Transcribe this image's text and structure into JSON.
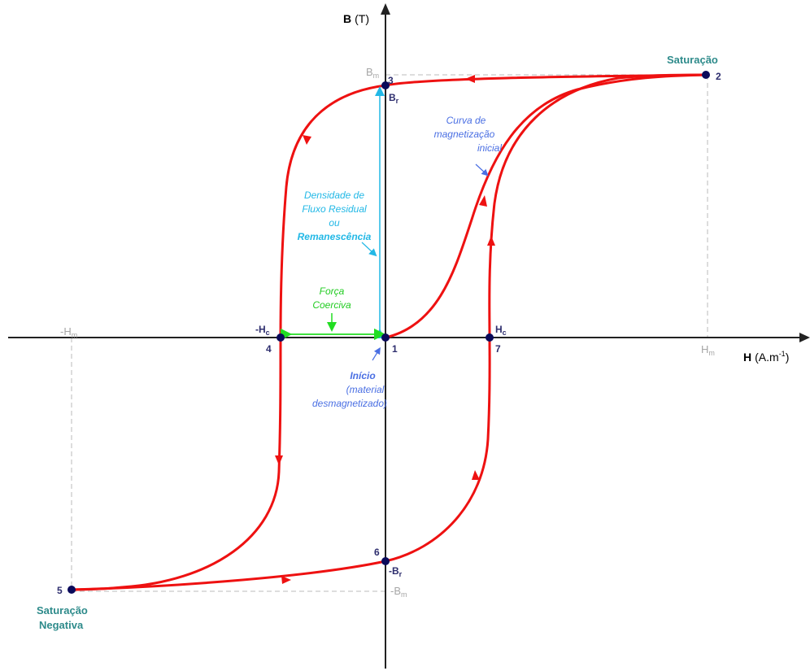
{
  "axes": {
    "y_label": "B",
    "y_unit": "(T)",
    "x_label": "H",
    "x_unit_base": "(A.m",
    "x_unit_exp": "-1",
    "x_unit_close": ")"
  },
  "ticks": {
    "bm_pos": "B",
    "bm_neg": "-B",
    "hm_pos": "H",
    "hm_neg": "-H",
    "m_sub": "m"
  },
  "points": {
    "p1": "1",
    "p2": "2",
    "p3": "3",
    "p4": "4",
    "p5": "5",
    "p6": "6",
    "p7": "7"
  },
  "symbols": {
    "br": "B",
    "neg_br": "-B",
    "r_sub": "r",
    "hc": "H",
    "neg_hc": "-H",
    "c_sub": "c"
  },
  "annotations": {
    "saturacao": "Saturação",
    "saturacao_negativa_1": "Saturação",
    "saturacao_negativa_2": "Negativa",
    "curva_1": "Curva de",
    "curva_2": "magnetização",
    "curva_3": "inicial",
    "densidade_1": "Densidade de",
    "densidade_2": "Fluxo Residual",
    "densidade_3": "ou",
    "densidade_4": "Remanescência",
    "forca_1": "Força",
    "forca_2": "Coerciva",
    "inicio_1": "Início",
    "inicio_2": "(material",
    "inicio_3": "desmagnetizado)"
  },
  "colors": {
    "curve": "#ee1111",
    "point": "#0a0a5a",
    "cyan": "#22b8e6",
    "green": "#22dd22",
    "blue": "#4a6fe3",
    "teal": "#2e8b8b",
    "gray": "#a6a6a6"
  }
}
